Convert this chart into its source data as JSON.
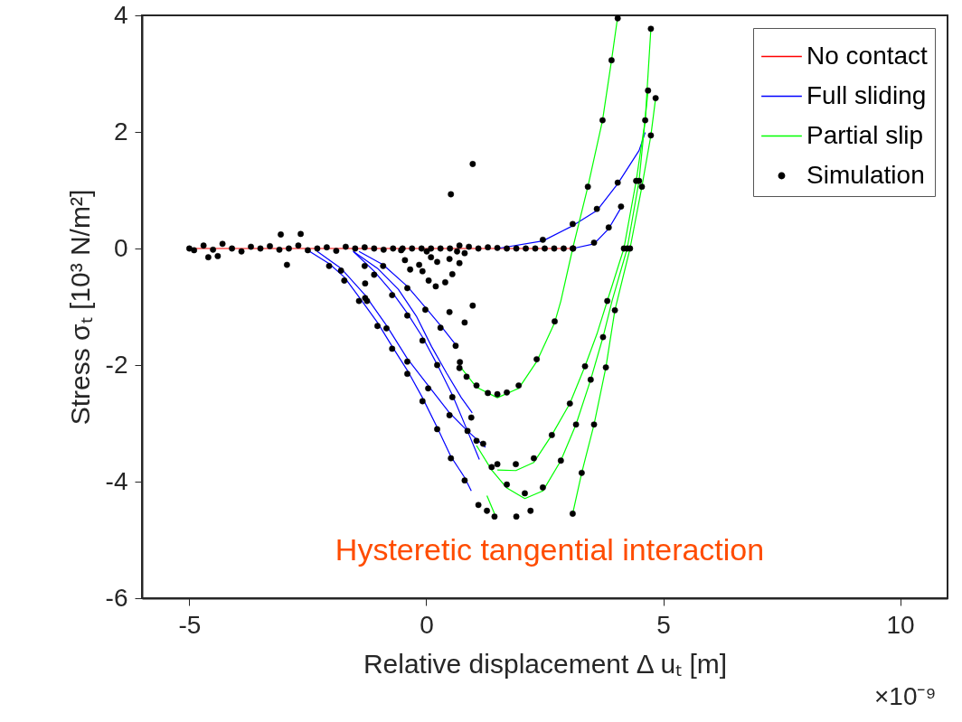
{
  "chart_data": {
    "type": "line",
    "xlabel": "Relative displacement Δ uₜ [m]",
    "ylabel": "Stress σₜ [10³ N/m²]",
    "annotations": [
      "Hysteretic tangential interaction",
      "×10⁻⁹"
    ],
    "xlim": [
      -6,
      11
    ],
    "xticks": [
      -5,
      0,
      5,
      10
    ],
    "ylim": [
      -6,
      4
    ],
    "yticks": [
      -6,
      -4,
      -2,
      0,
      2,
      4
    ],
    "grid": false,
    "legend": "top right",
    "series": [
      {
        "name": "No contact",
        "color": "#ff0000",
        "x": [
          -5,
          3.1
        ],
        "values": [
          0,
          0
        ]
      },
      {
        "name": "Full sliding",
        "color": "#0000ff",
        "x": [
          -2.5,
          -2.05,
          -1.73,
          -1.42,
          -1.03,
          -0.72,
          -0.4,
          -0.08,
          0.23,
          0.52,
          0.81,
          0.95
        ],
        "values": [
          -0.03,
          -0.26,
          -0.49,
          -0.83,
          -1.27,
          -1.68,
          -2.09,
          -2.56,
          -3.07,
          -3.57,
          -3.93,
          -4.16
        ]
      },
      {
        "color": "#0000ff",
        "x": [
          -1.54,
          -1.03,
          -0.59,
          -0.21,
          0.11,
          0.43,
          0.74,
          0.97
        ],
        "values": [
          -0.05,
          -0.34,
          -0.7,
          -1.16,
          -1.68,
          -2.14,
          -2.56,
          -2.82
        ]
      },
      {
        "color": "#0000ff",
        "x": [
          -1.54,
          -1.1,
          -0.72,
          -0.4,
          -0.08,
          0.23,
          0.55,
          0.87,
          1.12
        ],
        "values": [
          -0.05,
          -0.39,
          -0.75,
          -1.11,
          -1.52,
          -1.99,
          -2.51,
          -3.13,
          -3.62
        ]
      },
      {
        "color": "#0000ff",
        "x": [
          -1.42,
          -0.91,
          -0.4,
          -0.02,
          0.3,
          0.62
        ],
        "values": [
          -0.05,
          -0.28,
          -0.65,
          -1.01,
          -1.32,
          -1.65
        ]
      },
      {
        "color": "#0000ff",
        "x": [
          -2.3,
          -1.8,
          -1.29,
          -0.84,
          -0.4,
          0.04,
          0.49,
          0.87,
          1.25
        ],
        "values": [
          -0.05,
          -0.34,
          -0.8,
          -1.32,
          -1.89,
          -2.35,
          -2.82,
          -3.13,
          -3.41
        ]
      },
      {
        "color": "#0000ff",
        "x": [
          1.5,
          2.46,
          3.09,
          3.6,
          4.04,
          4.49,
          4.62
        ],
        "values": [
          0,
          0.13,
          0.39,
          0.65,
          1.11,
          1.68,
          1.99
        ]
      },
      {
        "color": "#0000ff",
        "x": [
          3.09,
          3.54,
          3.85,
          4.11
        ],
        "values": [
          0,
          0.08,
          0.34,
          0.7
        ]
      },
      {
        "name": "Partial slip",
        "color": "#00ff00",
        "x": [
          0.71,
          1.06,
          1.5,
          1.95,
          2.33,
          2.71,
          2.84,
          3.09,
          3.41,
          3.72,
          3.91,
          4.04
        ],
        "values": [
          -2.02,
          -2.38,
          -2.56,
          -2.4,
          -1.94,
          -1.27,
          -0.9,
          0,
          1.06,
          2.2,
          3.23,
          3.98
        ]
      },
      {
        "color": "#00ff00",
        "x": [
          1.5,
          1.89,
          2.27,
          2.65,
          3.03,
          3.35,
          3.6,
          3.82,
          4.17,
          4.43,
          4.62,
          4.74
        ],
        "values": [
          -3.8,
          -3.81,
          -3.67,
          -3.2,
          -2.66,
          -2.02,
          -1.47,
          -0.9,
          0,
          1.16,
          2.2,
          3.77
        ]
      },
      {
        "color": "#00ff00",
        "x": [
          1.06,
          1.38,
          1.7,
          2.08,
          2.46,
          2.84,
          3.16,
          3.47,
          3.73,
          3.92,
          4.24,
          4.49,
          4.68
        ],
        "values": [
          -3.38,
          -3.8,
          -4.11,
          -4.29,
          -4.16,
          -3.64,
          -3.02,
          -2.25,
          -1.52,
          -0.9,
          0,
          1.16,
          2.71
        ]
      },
      {
        "color": "#00ff00",
        "x": [
          3.09,
          3.28,
          3.54,
          3.79,
          3.98,
          4.3,
          4.55,
          4.74,
          4.84
        ],
        "values": [
          -4.55,
          -3.85,
          -3.02,
          -2.04,
          -1.06,
          0,
          1.06,
          1.94,
          2.58
        ]
      },
      {
        "color": "#00ff00",
        "x": [
          1.28,
          1.44
        ],
        "values": [
          -4.24,
          -4.55
        ]
      },
      {
        "name": "Simulation",
        "type": "scatter",
        "color": "#000000",
        "x": [
          -5,
          -4.9,
          -4.7,
          -4.5,
          -4.3,
          -4.1,
          -3.9,
          -3.7,
          -3.5,
          -3.3,
          -3.1,
          -2.9,
          -2.7,
          -2.5,
          -2.3,
          -2.1,
          -1.9,
          -1.7,
          -1.5,
          -1.3,
          -1.1,
          -0.9,
          -0.7,
          -0.5,
          -0.3,
          -0.1,
          0.1,
          0.3,
          0.5,
          0.7,
          0.9,
          1.1,
          1.3,
          1.5,
          1.7,
          1.9,
          2.1,
          2.3,
          2.5,
          2.7,
          2.9,
          3.1,
          -3.07,
          -2.65,
          -2.94,
          -4.6,
          -4.4,
          0.52,
          0.98,
          0.98,
          0.49,
          0.81,
          -0.53,
          -0.45,
          -0.34,
          -0.15,
          0.01,
          0.1,
          0.23,
          0.49,
          0.65,
          -0.08,
          0.05,
          0.2,
          0.4,
          0.55,
          0.7,
          0.81,
          -2.05,
          -1.73,
          -1.42,
          -1.03,
          -0.72,
          -0.4,
          -0.08,
          0.23,
          0.52,
          0.81,
          1.1,
          -1.8,
          -1.29,
          -0.84,
          -0.4,
          0.04,
          0.49,
          0.87,
          1.2,
          -1.1,
          -0.72,
          -0.4,
          -0.08,
          0.23,
          0.55,
          0.95,
          -0.91,
          -0.4,
          -0.02,
          0.3,
          0.62,
          0.7,
          -1.3,
          -1.29,
          -1.25,
          0.71,
          0.85,
          1.06,
          1.3,
          1.5,
          1.7,
          1.95,
          2.33,
          2.71,
          3.09,
          3.41,
          3.72,
          3.91,
          4.04,
          1.5,
          1.89,
          2.27,
          2.65,
          3.03,
          3.35,
          3.82,
          4.17,
          4.43,
          4.62,
          4.74,
          1.06,
          1.38,
          1.7,
          2.08,
          2.46,
          2.84,
          3.16,
          3.47,
          3.73,
          4.24,
          4.49,
          4.68,
          3.09,
          3.28,
          3.54,
          3.79,
          3.98,
          4.3,
          4.55,
          4.74,
          4.84,
          2.46,
          3.09,
          3.6,
          4.04,
          3.54,
          3.85,
          4.11,
          1.28,
          1.44,
          1.9,
          2.2
        ],
        "values": [
          0,
          -0.03,
          0.05,
          -0.02,
          0.08,
          0,
          -0.05,
          0.03,
          0,
          0.04,
          -0.02,
          0,
          0.05,
          -0.03,
          0,
          0.02,
          -0.04,
          0.03,
          0,
          0.02,
          0,
          -0.02,
          0,
          0,
          0,
          0,
          0,
          0,
          0,
          0.05,
          0.03,
          0,
          0.02,
          0.01,
          0,
          0,
          0,
          0,
          0,
          0,
          0,
          0,
          0.24,
          0.25,
          -0.28,
          -0.15,
          -0.13,
          0.93,
          1.45,
          -0.98,
          -1.09,
          -1.27,
          -0.03,
          -0.2,
          -0.36,
          -0.28,
          -0.05,
          -0.15,
          -0.23,
          -0.18,
          -0.05,
          -0.39,
          -0.55,
          -0.65,
          -0.58,
          -0.44,
          -0.25,
          -0.08,
          -0.3,
          -0.55,
          -0.9,
          -1.33,
          -1.72,
          -2.15,
          -2.62,
          -3.1,
          -3.6,
          -3.98,
          -4.4,
          -0.38,
          -0.85,
          -1.37,
          -1.94,
          -2.4,
          -2.86,
          -3.13,
          -3.35,
          -0.45,
          -0.8,
          -1.15,
          -1.58,
          -2,
          -2.55,
          -2.9,
          -0.3,
          -0.68,
          -1.05,
          -1.36,
          -1.67,
          -2.05,
          -0.3,
          -0.6,
          -0.9,
          -1.95,
          -2.2,
          -2.35,
          -2.48,
          -2.5,
          -2.47,
          -2.35,
          -1.9,
          -1.25,
          0,
          1.06,
          2.2,
          3.23,
          3.95,
          -3.7,
          -3.7,
          -3.6,
          -3.2,
          -2.66,
          -2.02,
          -0.9,
          0,
          1.16,
          2.2,
          3.77,
          -3.3,
          -3.75,
          -4.05,
          -4.2,
          -4.1,
          -3.64,
          -3.02,
          -2.25,
          -1.52,
          0,
          1.16,
          2.71,
          -4.55,
          -3.85,
          -3.02,
          -2.04,
          -1.06,
          0,
          1.06,
          1.94,
          2.58,
          0.15,
          0.42,
          0.68,
          1.13,
          0.1,
          0.36,
          0.72,
          -4.5,
          -4.6,
          -4.6,
          -4.5
        ]
      }
    ]
  }
}
